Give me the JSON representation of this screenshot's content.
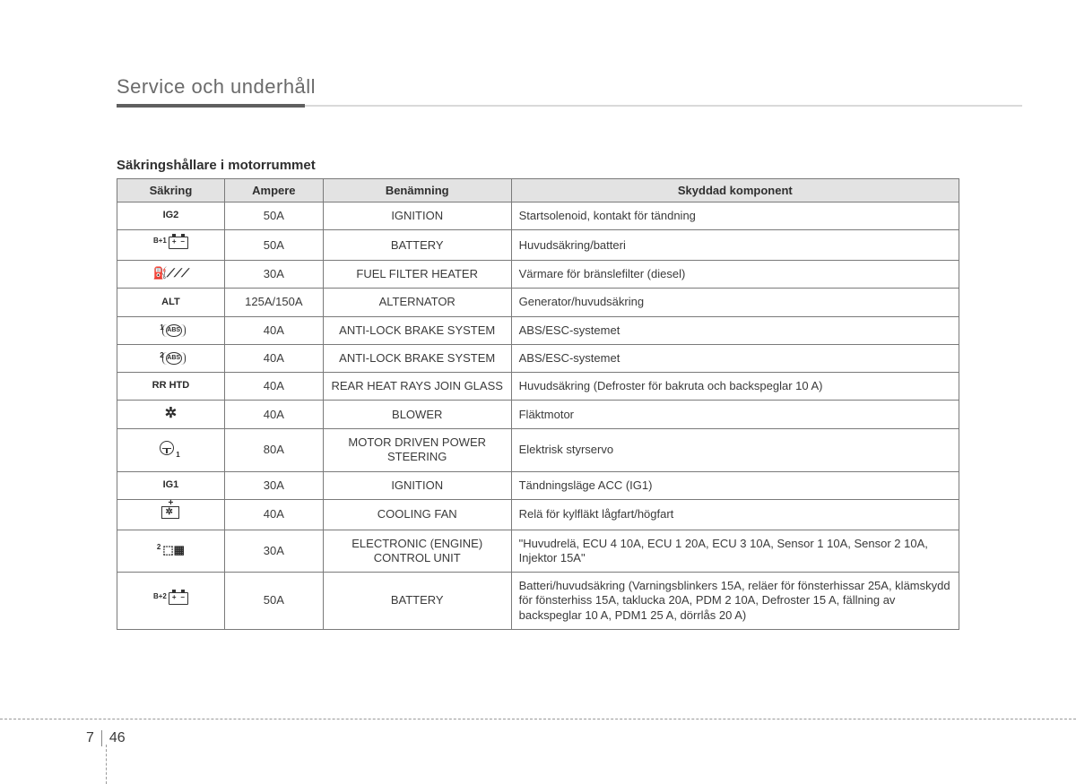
{
  "header": {
    "title": "Service och underhåll"
  },
  "subtitle": "Säkringshållare i motorrummet",
  "table": {
    "columns": [
      "Säkring",
      "Ampere",
      "Benämning",
      "Skyddad komponent"
    ],
    "rows": [
      {
        "fuse_label": "IG2",
        "icon": "text",
        "ampere": "50A",
        "name": "IGNITION",
        "component": "Startsolenoid, kontakt för tändning"
      },
      {
        "fuse_label": "B+1",
        "icon": "battery",
        "ampere": "50A",
        "name": "BATTERY",
        "component": "Huvudsäkring/batteri"
      },
      {
        "fuse_label": "",
        "icon": "fuelheat",
        "ampere": "30A",
        "name": "FUEL FILTER HEATER",
        "component": "Värmare för bränslefilter (diesel)"
      },
      {
        "fuse_label": "ALT",
        "icon": "text",
        "ampere": "125A/150A",
        "name": "ALTERNATOR",
        "component": "Generator/huvudsäkring"
      },
      {
        "fuse_label": "1",
        "icon": "abs",
        "ampere": "40A",
        "name": "ANTI-LOCK BRAKE SYSTEM",
        "component": "ABS/ESC-systemet"
      },
      {
        "fuse_label": "2",
        "icon": "abs",
        "ampere": "40A",
        "name": "ANTI-LOCK BRAKE SYSTEM",
        "component": "ABS/ESC-systemet"
      },
      {
        "fuse_label": "RR HTD",
        "icon": "text",
        "ampere": "40A",
        "name": "REAR HEAT RAYS JOIN GLASS",
        "component": "Huvudsäkring (Defroster för bakruta och backspeglar 10 A)"
      },
      {
        "fuse_label": "",
        "icon": "fan",
        "ampere": "40A",
        "name": "BLOWER",
        "component": "Fläktmotor"
      },
      {
        "fuse_label": "1",
        "icon": "steer",
        "ampere": "80A",
        "name": "MOTOR DRIVEN POWER STEERING",
        "component": "Elektrisk styrservo"
      },
      {
        "fuse_label": "IG1",
        "icon": "text",
        "ampere": "30A",
        "name": "IGNITION",
        "component": "Tändningsläge ACC (IG1)"
      },
      {
        "fuse_label": "",
        "icon": "coolfan",
        "ampere": "40A",
        "name": "COOLING FAN",
        "component": "Relä för kylfläkt lågfart/högfart"
      },
      {
        "fuse_label": "2",
        "icon": "ecu",
        "ampere": "30A",
        "name": "ELECTRONIC (ENGINE) CONTROL UNIT",
        "component": "\"Huvudrelä, ECU 4 10A, ECU 1 20A, ECU 3 10A, Sensor 1 10A, Sensor 2 10A, Injektor 15A\""
      },
      {
        "fuse_label": "B+2",
        "icon": "battery",
        "ampere": "50A",
        "name": "BATTERY",
        "component": "Batteri/huvudsäkring  (Varningsblinkers 15A, reläer för fönsterhissar 25A, klämskydd för fönsterhiss 15A, taklucka 20A, PDM 2 10A, Defroster 15 A, fällning av backspeglar 10 A, PDM1 25 A, dörrlås 20 A)"
      }
    ]
  },
  "page": {
    "chapter": "7",
    "number": "46"
  },
  "colors": {
    "header_bg": "#e3e3e3",
    "border": "#7a7a7a",
    "text": "#3a3a3a"
  }
}
